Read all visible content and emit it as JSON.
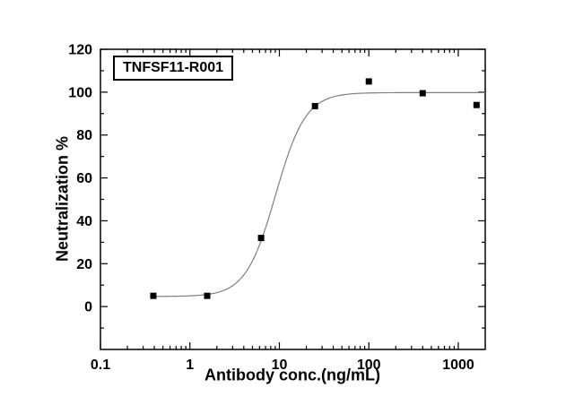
{
  "page": {
    "background": "#ffffff"
  },
  "chart_data": {
    "type": "scatter",
    "annotation": "TNFSF11-R001",
    "xlabel": "Antibody conc.(ng/mL)",
    "ylabel": "Neutralization %",
    "xscale": "log",
    "xlim": [
      0.1,
      2000
    ],
    "ylim": [
      -20,
      120
    ],
    "xticks": [
      0.1,
      1,
      10,
      100,
      1000
    ],
    "xtick_labels": [
      "0.1",
      "1",
      "10",
      "100",
      "1000"
    ],
    "yticks": [
      0,
      20,
      40,
      60,
      80,
      100,
      120
    ],
    "ytick_labels": [
      "0",
      "20",
      "40",
      "60",
      "80",
      "100",
      "120"
    ],
    "y_minor_step": 10,
    "points": {
      "x": [
        0.39,
        1.56,
        6.25,
        25,
        100,
        400,
        1600
      ],
      "y": [
        5,
        5,
        32,
        93.5,
        105,
        99.5,
        94
      ]
    },
    "fit_curve": {
      "model": "4PL",
      "bottom": 4.7,
      "top": 99.8,
      "ec50": 9.1,
      "hill": 2.6,
      "x_start": 0.39,
      "x_end": 2000
    },
    "marker": {
      "shape": "square",
      "size": 7,
      "color": "#000000"
    },
    "line_color": "#7f7f7f",
    "axis_color": "#000000",
    "grid": false
  }
}
